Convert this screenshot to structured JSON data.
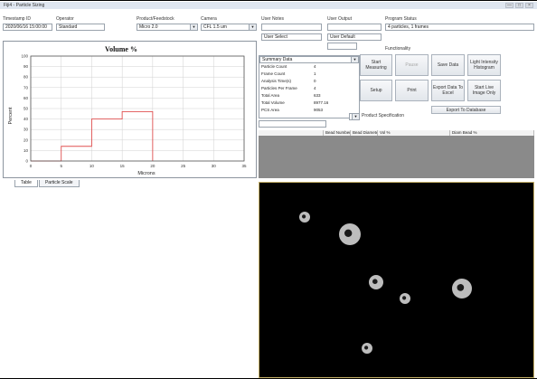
{
  "window": {
    "title": "Fiji4 - Particle Sizing",
    "controls": [
      "—",
      "□",
      "×"
    ]
  },
  "header": {
    "timestamp_label": "Timestamp ID",
    "timestamp_value": "2020/06/16 15:00:00",
    "operator_label": "Operator",
    "operator_value": "Standard",
    "product_label": "Product/Feedstock",
    "product_value": "Micro 2.0",
    "camera_label": "Camera",
    "camera_value": "CFL 1.5 um",
    "user_notes_label": "User Notes",
    "user_output_label": "User Output",
    "program_status_label": "Program Status",
    "program_status_value": "4 particles, 1 frames",
    "user_select_label": "User Select",
    "user_default_label": "User Default"
  },
  "functionality": {
    "label": "Functionality",
    "buttons": [
      "Start Measuring",
      "Pause",
      "Save Data",
      "Light Intensity Histogram",
      "Setup",
      "Print",
      "Export Data To Excel",
      "Start Live Image Only"
    ],
    "export_db": "Export To Database",
    "product_spec": "Product Specification"
  },
  "stats": {
    "dropdown": "Summary Data",
    "rows": [
      {
        "k": "Particle Count",
        "v": "4"
      },
      {
        "k": "Frame Count",
        "v": "1"
      },
      {
        "k": "Analysis Time(s)",
        "v": "0"
      },
      {
        "k": "Particles Per Frame",
        "v": "4"
      },
      {
        "k": "Total Area",
        "v": "633"
      },
      {
        "k": "Total Volume",
        "v": "8977.16"
      },
      {
        "k": "PCS Area",
        "v": "9053"
      }
    ]
  },
  "grid": {
    "columns": [
      "",
      "Bead Number",
      "Bead Diameter",
      "Vol %",
      "Diam Bead %"
    ]
  },
  "tabs": [
    "Table",
    "Particle Scale"
  ],
  "chart_data": {
    "type": "line",
    "title": "Volume %",
    "xlabel": "Microns",
    "ylabel": "Percent",
    "xlim": [
      0,
      35
    ],
    "ylim": [
      0,
      100
    ],
    "xticks": [
      0,
      5,
      10,
      15,
      20,
      25,
      30,
      35
    ],
    "yticks": [
      0,
      10,
      20,
      30,
      40,
      50,
      60,
      70,
      80,
      90,
      100
    ],
    "x": [
      0,
      5,
      5,
      10,
      10,
      15,
      15,
      20,
      20
    ],
    "series": [
      {
        "values": [
          0,
          0,
          14,
          14,
          40,
          40,
          47,
          47,
          0
        ],
        "color": "#e05050"
      }
    ]
  },
  "image": {
    "particles": [
      {
        "cx": 50,
        "cy": 38,
        "r": 6
      },
      {
        "cx": 100,
        "cy": 57,
        "r": 12
      },
      {
        "cx": 129,
        "cy": 110,
        "r": 8
      },
      {
        "cx": 161,
        "cy": 128,
        "r": 6
      },
      {
        "cx": 224,
        "cy": 117,
        "r": 11
      },
      {
        "cx": 119,
        "cy": 183,
        "r": 6
      }
    ]
  }
}
